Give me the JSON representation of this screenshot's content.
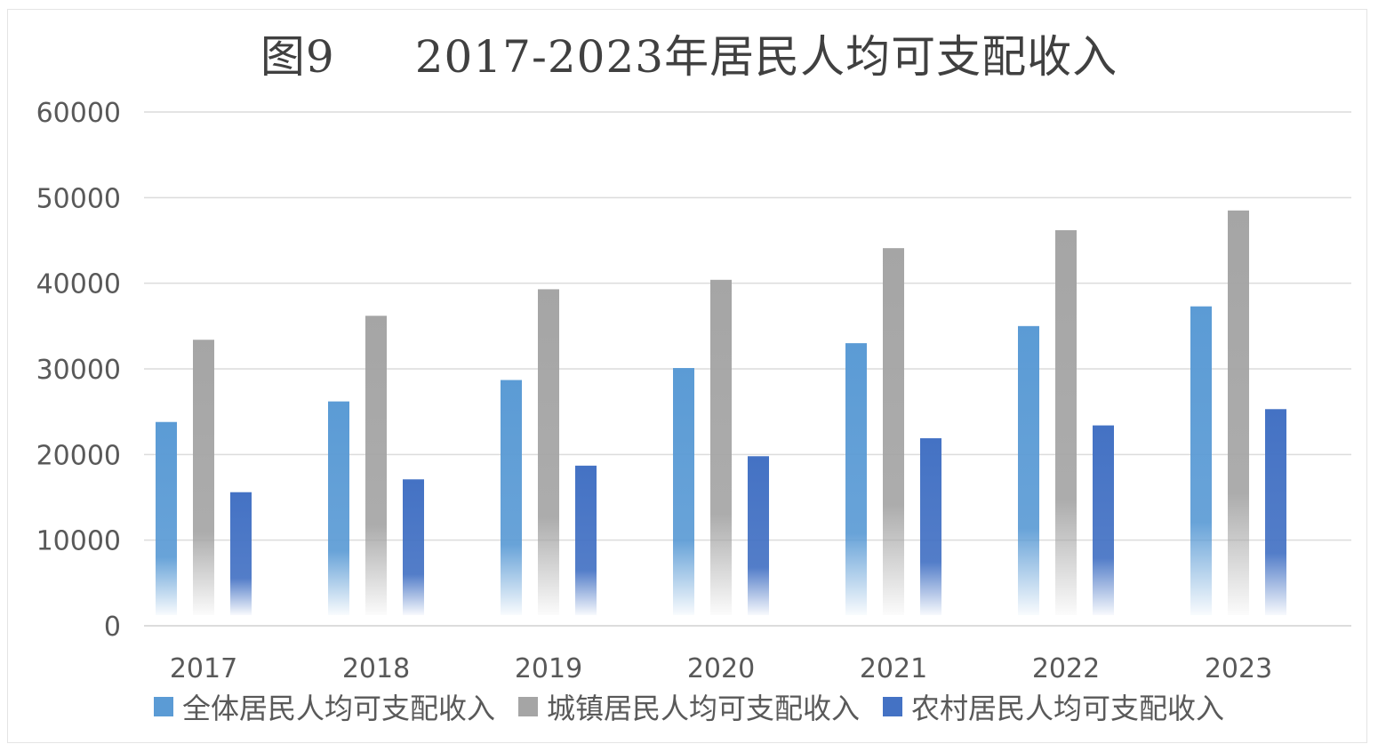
{
  "chart_data": {
    "type": "bar",
    "title_prefix": "图9",
    "title": "2017-2023年居民人均可支配收入",
    "xlabel": "",
    "ylabel": "",
    "categories": [
      "2017",
      "2018",
      "2019",
      "2020",
      "2021",
      "2022",
      "2023"
    ],
    "ylim": [
      0,
      60000
    ],
    "yticks": [
      0,
      10000,
      20000,
      30000,
      40000,
      50000,
      60000
    ],
    "grid": true,
    "legend_position": "bottom",
    "series": [
      {
        "name": "全体居民人均可支配收入",
        "color": "#5b9bd5",
        "values": [
          23800,
          26200,
          28700,
          30100,
          33000,
          35000,
          37300
        ]
      },
      {
        "name": "城镇居民人均可支配收入",
        "color": "#a5a5a5",
        "values": [
          33400,
          36200,
          39300,
          40400,
          44100,
          46200,
          48500
        ]
      },
      {
        "name": "农村居民人均可支配收入",
        "color": "#4472c4",
        "values": [
          15600,
          17100,
          18700,
          19800,
          21900,
          23400,
          25300
        ]
      }
    ]
  }
}
